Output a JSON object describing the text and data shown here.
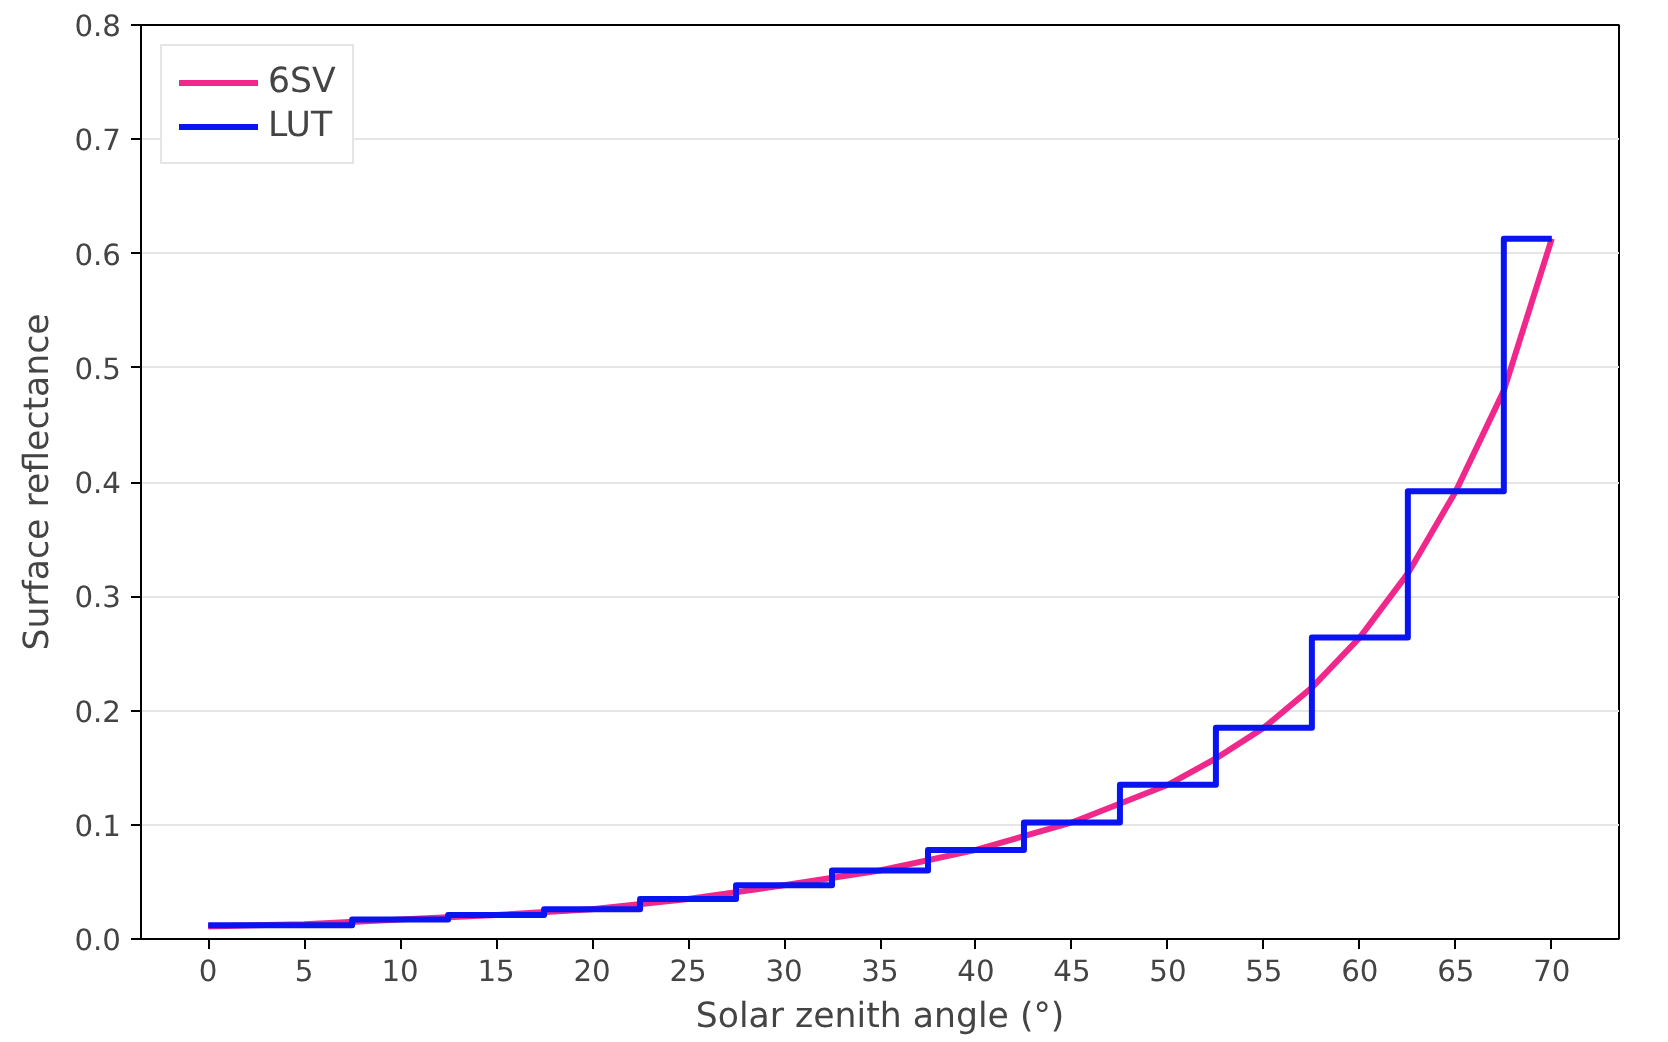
{
  "chart_data": {
    "type": "line",
    "xlabel": "Solar zenith angle (°)",
    "ylabel": "Surface reflectance",
    "series": [
      {
        "name": "6SV",
        "color": "#f0288c",
        "x": [
          0,
          5,
          10,
          15,
          20,
          25,
          30,
          35,
          40,
          45,
          50,
          52.5,
          55,
          57.5,
          60,
          62.5,
          65,
          67.5,
          70
        ],
        "values": [
          0.011,
          0.013,
          0.017,
          0.021,
          0.026,
          0.035,
          0.047,
          0.06,
          0.078,
          0.102,
          0.135,
          0.158,
          0.185,
          0.22,
          0.264,
          0.32,
          0.392,
          0.48,
          0.613
        ]
      },
      {
        "name": "LUT",
        "color": "#0a14f0",
        "type": "step",
        "x": [
          0,
          7.5,
          12.5,
          17.5,
          22.5,
          27.5,
          32.5,
          37.5,
          42.5,
          47.5,
          52.5,
          57.5,
          62.5,
          67.5,
          70
        ],
        "values": [
          0.012,
          0.017,
          0.021,
          0.026,
          0.035,
          0.047,
          0.06,
          0.078,
          0.102,
          0.135,
          0.185,
          0.264,
          0.392,
          0.613,
          0.613
        ]
      }
    ],
    "xlim": [
      -3.5,
      73.5
    ],
    "xticks": [
      0,
      5,
      10,
      15,
      20,
      25,
      30,
      35,
      40,
      45,
      50,
      55,
      60,
      65,
      70
    ],
    "ylim": [
      0,
      0.8
    ],
    "yticks": [
      {
        "value": 0,
        "label": "0.0"
      },
      {
        "value": 0.1,
        "label": "0.1"
      },
      {
        "value": 0.2,
        "label": "0.2"
      },
      {
        "value": 0.3,
        "label": "0.3"
      },
      {
        "value": 0.4,
        "label": "0.4"
      },
      {
        "value": 0.5,
        "label": "0.5"
      },
      {
        "value": 0.6,
        "label": "0.6"
      },
      {
        "value": 0.7,
        "label": "0.7"
      },
      {
        "value": 0.8,
        "label": "0.8"
      }
    ],
    "grid": "y",
    "legend": "top left"
  }
}
